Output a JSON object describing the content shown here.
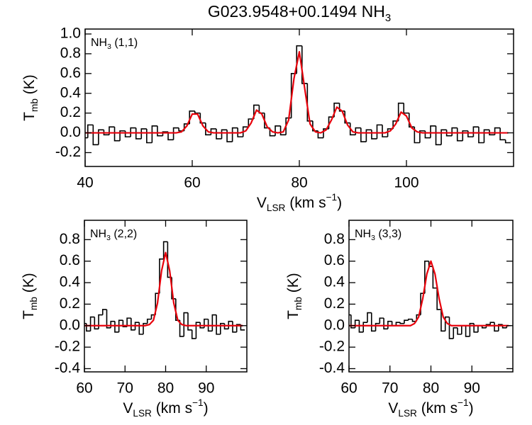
{
  "chart_data": [
    {
      "type": "line",
      "title": [
        "G023.9548+00.1494 NH",
        "3"
      ],
      "label": [
        "NH",
        "3",
        " (1,1)"
      ],
      "xlabel": [
        "V",
        "LSR",
        " (km s",
        "−1",
        ")"
      ],
      "ylabel": [
        "T",
        "mb",
        " (K)"
      ],
      "x": [
        40,
        41,
        42,
        43,
        44,
        45,
        46,
        47,
        48,
        49,
        50,
        51,
        52,
        53,
        54,
        55,
        56,
        57,
        58,
        59,
        60,
        61,
        62,
        63,
        64,
        65,
        66,
        67,
        68,
        69,
        70,
        71,
        72,
        73,
        74,
        75,
        76,
        77,
        78,
        79,
        80,
        81,
        82,
        83,
        84,
        85,
        86,
        87,
        88,
        89,
        90,
        91,
        92,
        93,
        94,
        95,
        96,
        97,
        98,
        99,
        100,
        101,
        102,
        103,
        104,
        105,
        106,
        107,
        108,
        109,
        110,
        111,
        112,
        113,
        114,
        115,
        116,
        117,
        118,
        119
      ],
      "series": [
        {
          "color": "#000000",
          "drawstyle": "steps-mid",
          "values": [
            -0.05,
            0.08,
            -0.12,
            0.03,
            -0.02,
            0.06,
            -0.08,
            0.02,
            -0.04,
            0.05,
            -0.06,
            0.04,
            -0.1,
            0.07,
            -0.03,
            0.01,
            -0.07,
            0.05,
            0.02,
            0.09,
            0.22,
            0.2,
            0.1,
            -0.02,
            0.04,
            -0.06,
            0.03,
            -0.09,
            0.05,
            -0.04,
            0.06,
            0.14,
            0.28,
            0.2,
            0.05,
            -0.03,
            0.07,
            -0.02,
            0.15,
            0.6,
            0.88,
            0.5,
            0.12,
            0.02,
            -0.05,
            0.04,
            0.16,
            0.3,
            0.22,
            0.1,
            -0.02,
            0.05,
            -0.09,
            0.03,
            -0.06,
            0.08,
            -0.04,
            0.04,
            0.12,
            0.3,
            0.2,
            0.06,
            -0.1,
            0.02,
            -0.05,
            0.07,
            -0.12,
            0.03,
            -0.03,
            0.05,
            -0.08,
            0.02,
            -0.04,
            0.06,
            -0.1,
            0.03,
            -0.02,
            0.05,
            -0.07,
            -0.1
          ]
        },
        {
          "color": "#e8000b",
          "drawstyle": "line",
          "values": [
            0,
            0,
            0,
            0,
            0,
            0,
            0,
            0,
            0,
            0,
            0,
            0,
            0,
            0,
            0,
            0,
            0,
            0,
            0.01,
            0.07,
            0.19,
            0.19,
            0.07,
            0.01,
            0,
            0,
            0,
            0,
            0,
            0,
            0.02,
            0.1,
            0.23,
            0.19,
            0.06,
            0.01,
            0,
            0.01,
            0.13,
            0.55,
            0.82,
            0.45,
            0.09,
            0.01,
            0,
            0.03,
            0.13,
            0.26,
            0.22,
            0.08,
            0.01,
            0,
            0,
            0,
            0,
            0,
            0,
            0.02,
            0.09,
            0.21,
            0.17,
            0.05,
            0.01,
            0,
            0,
            0,
            0,
            0,
            0,
            0,
            0,
            0,
            0,
            0,
            0,
            0,
            0,
            0,
            0,
            0
          ]
        }
      ],
      "xlim": [
        40,
        120
      ],
      "xticks": [
        40,
        60,
        80,
        100
      ],
      "ylim": [
        -0.34,
        1.05
      ],
      "yticks": [
        -0.2,
        {
          "value": 0,
          "label": "0.0"
        },
        0.2,
        0.4,
        0.6,
        0.8,
        {
          "value": 1,
          "label": "1.0"
        }
      ]
    },
    {
      "type": "line",
      "label": [
        "NH",
        "3",
        " (2,2)"
      ],
      "xlabel": [
        "V",
        "LSR",
        " (km s",
        "−1",
        ")"
      ],
      "ylabel": [
        "T",
        "mb",
        " (K)"
      ],
      "x": [
        60,
        61,
        62,
        63,
        64,
        65,
        66,
        67,
        68,
        69,
        70,
        71,
        72,
        73,
        74,
        75,
        76,
        77,
        78,
        79,
        80,
        81,
        82,
        83,
        84,
        85,
        86,
        87,
        88,
        89,
        90,
        91,
        92,
        93,
        94,
        95,
        96,
        97,
        98,
        99
      ],
      "series": [
        {
          "color": "#000000",
          "drawstyle": "steps-mid",
          "values": [
            0.02,
            -0.05,
            0.08,
            -0.03,
            0.1,
            0.15,
            -0.02,
            0.04,
            -0.06,
            0.05,
            -0.01,
            0.07,
            -0.04,
            0.03,
            -0.08,
            0.02,
            0.06,
            0.1,
            0.3,
            0.62,
            0.78,
            0.45,
            0.25,
            0.05,
            -0.1,
            0.12,
            -0.04,
            -0.12,
            0.03,
            -0.02,
            0.06,
            -0.05,
            0.1,
            -0.08,
            0.02,
            -0.03,
            0.04,
            -0.06,
            0.01,
            -0.04
          ]
        },
        {
          "color": "#e8000b",
          "drawstyle": "line",
          "values": [
            0,
            0,
            0,
            0,
            0,
            0,
            0,
            0,
            0,
            0,
            0,
            0,
            0,
            0,
            0,
            0,
            0.01,
            0.05,
            0.21,
            0.51,
            0.68,
            0.51,
            0.21,
            0.05,
            0.01,
            0,
            0,
            0,
            0,
            0,
            0,
            0,
            0,
            0,
            0,
            0,
            0,
            0,
            0,
            0
          ]
        }
      ],
      "xlim": [
        60,
        100
      ],
      "xticks": [
        60,
        70,
        80,
        90
      ],
      "ylim": [
        -0.43,
        0.98
      ],
      "yticks": [
        -0.4,
        -0.2,
        {
          "value": 0,
          "label": "0.0"
        },
        0.2,
        0.4,
        0.6,
        0.8
      ]
    },
    {
      "type": "line",
      "label": [
        "NH",
        "3",
        " (3,3)"
      ],
      "xlabel": [
        "V",
        "LSR",
        " (km s",
        "−1",
        ")"
      ],
      "ylabel": [
        "T",
        "mb",
        " (K)"
      ],
      "x": [
        60,
        61,
        62,
        63,
        64,
        65,
        66,
        67,
        68,
        69,
        70,
        71,
        72,
        73,
        74,
        75,
        76,
        77,
        78,
        79,
        80,
        81,
        82,
        83,
        84,
        85,
        86,
        87,
        88,
        89,
        90,
        91,
        92,
        93,
        94,
        95,
        96,
        97,
        98,
        99
      ],
      "series": [
        {
          "color": "#000000",
          "drawstyle": "steps-mid",
          "values": [
            0.1,
            -0.02,
            0.05,
            -0.06,
            0.03,
            0.12,
            -0.05,
            0.02,
            0.07,
            -0.03,
            0.04,
            0.0,
            0.03,
            0.02,
            0.05,
            0.06,
            0.04,
            0.1,
            0.3,
            0.6,
            0.55,
            0.35,
            0.15,
            -0.05,
            0.08,
            -0.12,
            -0.02,
            -0.08,
            0.0,
            -0.1,
            0.02,
            -0.06,
            0.0,
            -0.02,
            0.01,
            0.03,
            -0.05,
            0.01,
            -0.02,
            0.0
          ]
        },
        {
          "color": "#e8000b",
          "drawstyle": "line",
          "values": [
            0,
            0,
            0,
            0,
            0,
            0,
            0,
            0,
            0,
            0,
            0,
            0,
            0,
            0,
            0,
            0,
            0.02,
            0.08,
            0.25,
            0.48,
            0.6,
            0.48,
            0.25,
            0.08,
            0.02,
            0,
            0,
            0,
            0,
            0,
            0,
            0,
            0,
            0,
            0,
            0,
            0,
            0,
            0,
            0
          ]
        }
      ],
      "xlim": [
        60,
        100
      ],
      "xticks": [
        60,
        70,
        80,
        90
      ],
      "ylim": [
        -0.43,
        0.98
      ],
      "yticks": [
        -0.4,
        -0.2,
        {
          "value": 0,
          "label": "0.0"
        },
        0.2,
        0.4,
        0.6,
        0.8
      ]
    }
  ]
}
